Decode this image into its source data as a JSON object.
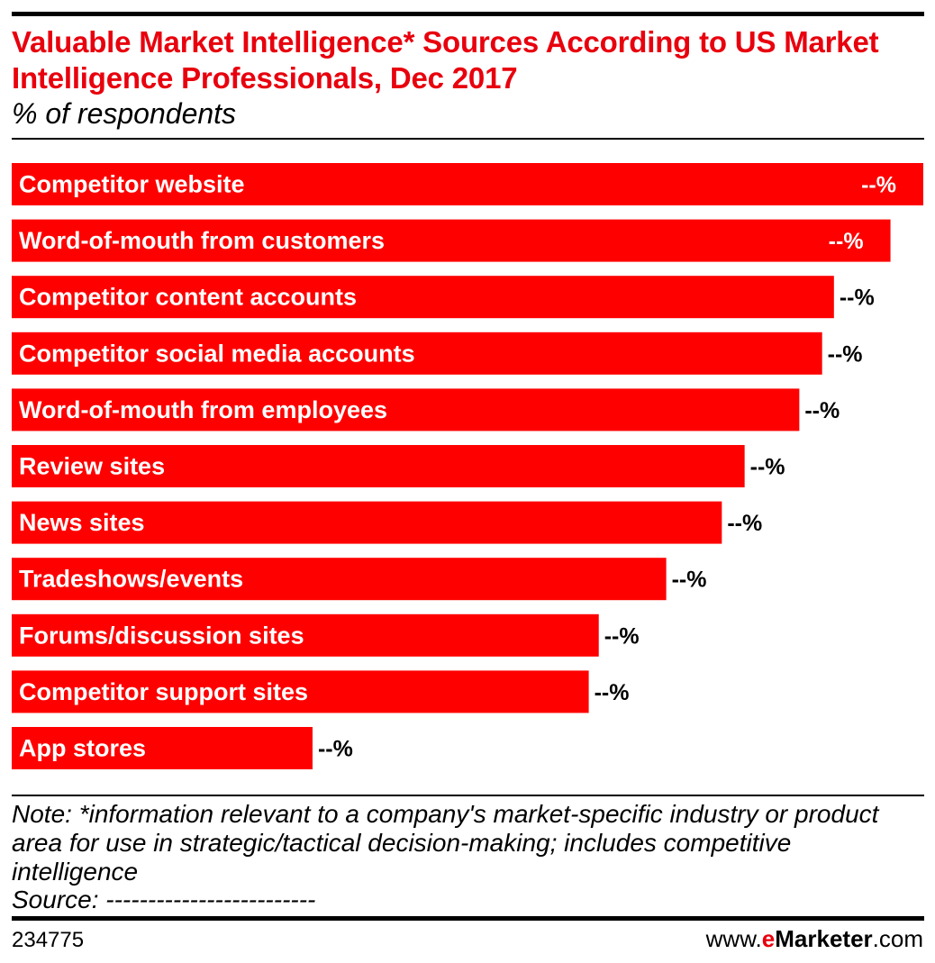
{
  "chart_data": {
    "type": "bar",
    "orientation": "horizontal",
    "title": "Valuable Market Intelligence* Sources According to US Market Intelligence Professionals, Dec 2017",
    "subtitle": "% of respondents",
    "categories": [
      "Competitor website",
      "Word-of-mouth from customers",
      "Competitor content accounts",
      "Competitor social media accounts",
      "Word-of-mouth from employees",
      "Review sites",
      "News sites",
      "Tradeshows/events",
      "Forums/discussion sites",
      "Competitor support sites",
      "App stores"
    ],
    "relative_values": [
      1.0,
      0.964,
      0.902,
      0.889,
      0.864,
      0.804,
      0.779,
      0.718,
      0.644,
      0.633,
      0.33
    ],
    "value_labels": [
      "--%",
      "--%",
      "--%",
      "--%",
      "--%",
      "--%",
      "--%",
      "--%",
      "--%",
      "--%",
      "--%"
    ],
    "bar_color": "#fe0000",
    "label_color_inside": "#ffffff",
    "label_color_outside": "#000000",
    "legend": "none",
    "grid": false
  },
  "note": "Note: *information relevant to a company's market-specific industry or product area for use in strategic/tactical decision-making; includes competitive intelligence",
  "source": "Source: -------------------------",
  "chart_id": "234775",
  "brand": {
    "prefix": "www.",
    "e": "e",
    "name": "Marketer",
    "suffix": ".com"
  },
  "colors": {
    "title": "#e8000d",
    "bar": "#fe0000",
    "rule": "#000000"
  }
}
